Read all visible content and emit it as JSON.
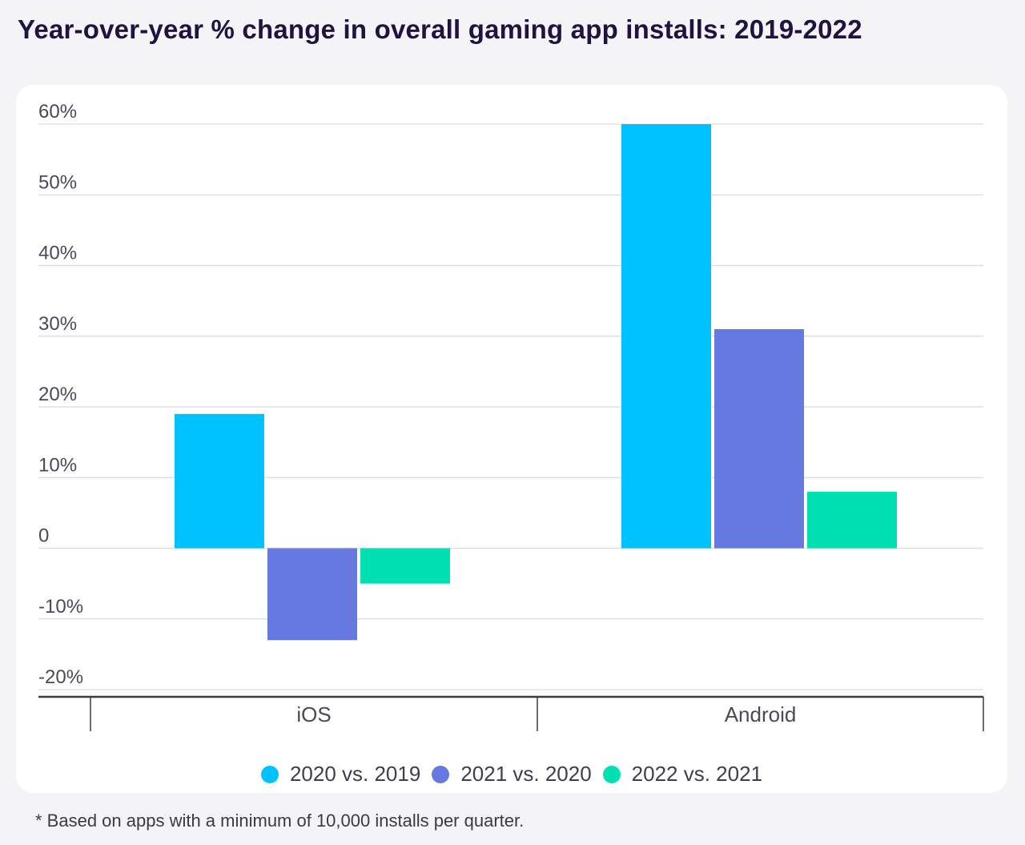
{
  "title": "Year-over-year % change in overall gaming app installs: 2019-2022",
  "footnote": "* Based on apps with a minimum of 10,000 installs per quarter.",
  "chart_data": {
    "type": "bar",
    "categories": [
      "iOS",
      "Android"
    ],
    "series": [
      {
        "name": "2020 vs. 2019",
        "values": [
          19,
          60
        ],
        "color": "#00c2ff"
      },
      {
        "name": "2021 vs. 2020",
        "values": [
          -13,
          31
        ],
        "color": "#6679e0"
      },
      {
        "name": "2022 vs. 2021",
        "values": [
          -5,
          8
        ],
        "color": "#00e0b2"
      }
    ],
    "y_ticks": [
      "60%",
      "50%",
      "40%",
      "30%",
      "20%",
      "10%",
      "0",
      "-10%",
      "-20%"
    ],
    "y_tick_values": [
      60,
      50,
      40,
      30,
      20,
      10,
      0,
      -10,
      -20
    ],
    "ylim": [
      -20,
      60
    ],
    "grid": true,
    "legend_position": "bottom"
  }
}
